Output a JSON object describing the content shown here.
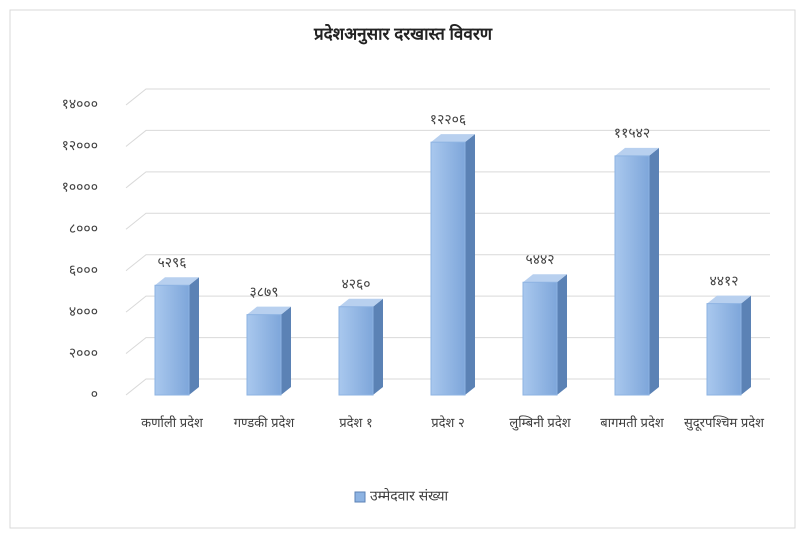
{
  "chart_data": {
    "type": "bar",
    "title": "प्रदेशअनुसार दरखास्त विवरण",
    "categories": [
      "कर्णाली प्रदेश",
      "गण्डकी प्रदेश",
      "प्रदेश १",
      "प्रदेश २",
      "लुम्बिनी प्रदेश",
      "बागमती प्रदेश",
      "सुदूरपश्चिम प्रदेश"
    ],
    "series": [
      {
        "name": "उम्मेदवार संख्या",
        "color": "#8db3e2",
        "values": [
          5296,
          3879,
          4260,
          12206,
          5442,
          11542,
          4412
        ],
        "value_labels": [
          "५२९६",
          "३८७९",
          "४२६०",
          "१२२०६",
          "५४४२",
          "११५४२",
          "४४१२"
        ]
      }
    ],
    "ylim": [
      0,
      14000
    ],
    "yticks": [
      {
        "value": 0,
        "label": "०"
      },
      {
        "value": 2000,
        "label": "२०००"
      },
      {
        "value": 4000,
        "label": "४०००"
      },
      {
        "value": 6000,
        "label": "६०००"
      },
      {
        "value": 8000,
        "label": "८०००"
      },
      {
        "value": 10000,
        "label": "१००००"
      },
      {
        "value": 12000,
        "label": "१२०००"
      },
      {
        "value": 14000,
        "label": "१४०००"
      }
    ],
    "grid": true,
    "legend": "bottom"
  }
}
